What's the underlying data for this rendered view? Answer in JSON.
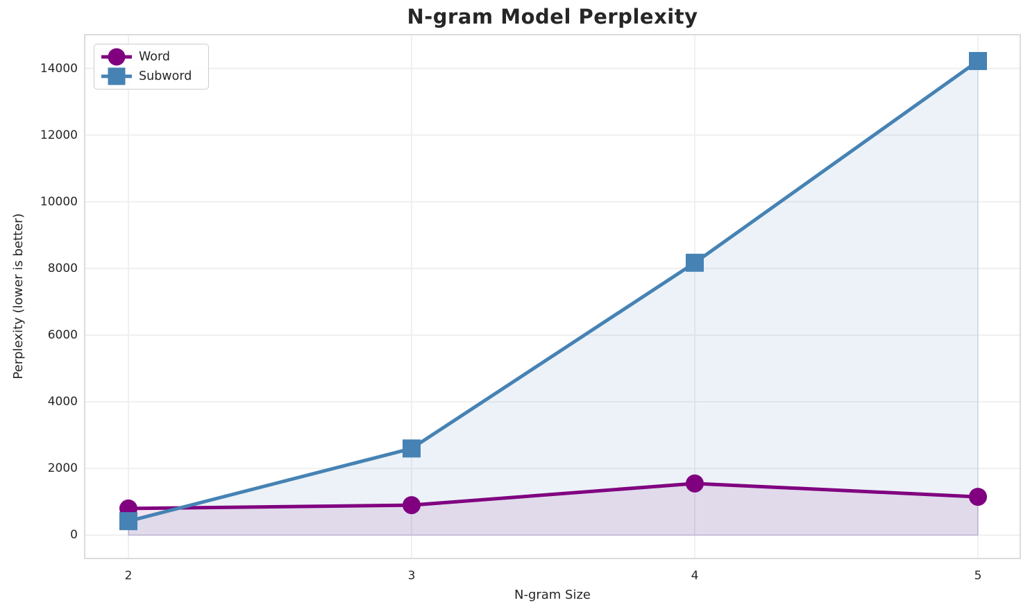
{
  "chart_data": {
    "type": "line",
    "title": "N-gram Model Perplexity",
    "xlabel": "N-gram Size",
    "ylabel": "Perplexity (lower is better)",
    "x": [
      2,
      3,
      4,
      5
    ],
    "xticks": [
      2,
      3,
      4,
      5
    ],
    "yticks": [
      0,
      2000,
      4000,
      6000,
      8000,
      10000,
      12000,
      14000
    ],
    "xlim": [
      1.8456,
      5.1495
    ],
    "ylim": [
      -700,
      15010
    ],
    "grid": true,
    "legend_position": "upper left",
    "series": [
      {
        "name": "Word",
        "color": "#800080",
        "marker": "circle",
        "line_width": 5,
        "fill_to_zero": true,
        "fill_opacity": 0.1,
        "values": [
          800,
          900,
          1550,
          1150
        ]
      },
      {
        "name": "Subword",
        "color": "#4682B4",
        "marker": "square",
        "line_width": 5,
        "fill_to_zero": true,
        "fill_opacity": 0.1,
        "values": [
          420,
          2600,
          8170,
          14220
        ]
      }
    ]
  },
  "theme": {
    "background": "#ffffff",
    "text_color": "#262626",
    "grid_color": "#eeeeee",
    "spine_color": "#d8d8d8",
    "legend_border": "#cccccc"
  }
}
